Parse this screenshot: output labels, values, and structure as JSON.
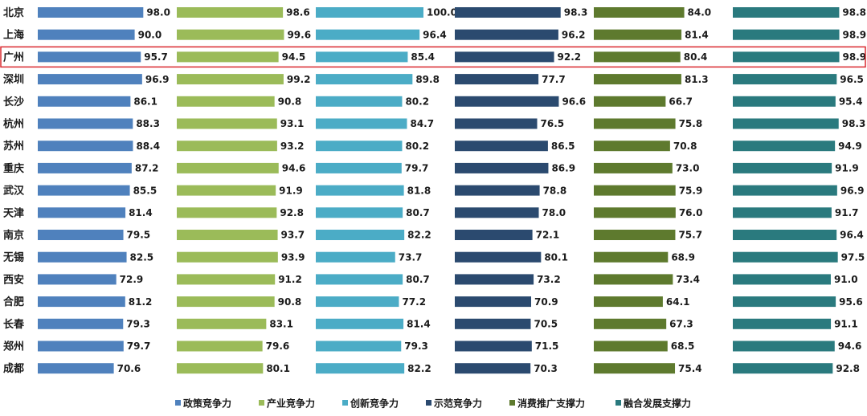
{
  "chart_data": {
    "type": "bar",
    "orientation": "horizontal",
    "categories": [
      "北京",
      "上海",
      "广州",
      "深圳",
      "长沙",
      "杭州",
      "苏州",
      "重庆",
      "武汉",
      "天津",
      "南京",
      "无锡",
      "西安",
      "合肥",
      "长春",
      "郑州",
      "成都"
    ],
    "highlighted_category": "广州",
    "series": [
      {
        "name": "政策竞争力",
        "color": "#4F81BD",
        "values": [
          98.0,
          90.0,
          95.7,
          96.9,
          86.1,
          88.3,
          88.4,
          87.2,
          85.5,
          81.4,
          79.5,
          82.5,
          72.9,
          81.2,
          79.3,
          79.7,
          70.6
        ]
      },
      {
        "name": "产业竞争力",
        "color": "#9BBB59",
        "values": [
          98.6,
          99.6,
          94.5,
          99.2,
          90.8,
          93.1,
          93.2,
          94.6,
          91.9,
          92.8,
          93.7,
          93.9,
          91.2,
          90.8,
          83.1,
          79.6,
          80.1
        ]
      },
      {
        "name": "创新竞争力",
        "color": "#4BACC6",
        "values": [
          100.0,
          96.4,
          85.4,
          89.8,
          80.2,
          84.7,
          80.2,
          79.7,
          81.8,
          80.7,
          82.2,
          73.7,
          80.7,
          77.2,
          81.4,
          79.3,
          82.2
        ]
      },
      {
        "name": "示范竞争力",
        "color": "#2B4A6F",
        "values": [
          98.3,
          96.2,
          92.2,
          77.7,
          96.6,
          76.5,
          86.5,
          86.9,
          78.8,
          78.0,
          72.1,
          80.1,
          73.2,
          70.9,
          70.5,
          71.5,
          70.3
        ]
      },
      {
        "name": "消费推广支撑力",
        "color": "#5E7A2E",
        "values": [
          84.0,
          81.4,
          80.4,
          81.3,
          66.7,
          75.8,
          70.8,
          73.0,
          75.9,
          76.0,
          75.7,
          68.9,
          73.4,
          64.1,
          67.3,
          68.5,
          75.4
        ]
      },
      {
        "name": "融合发展支撑力",
        "color": "#2A7A7E",
        "values": [
          98.8,
          98.9,
          98.9,
          96.5,
          95.4,
          98.3,
          94.9,
          91.9,
          96.9,
          91.7,
          96.4,
          97.5,
          91.0,
          95.6,
          91.1,
          94.6,
          92.8
        ]
      }
    ],
    "legend_position": "bottom",
    "grid": false
  }
}
